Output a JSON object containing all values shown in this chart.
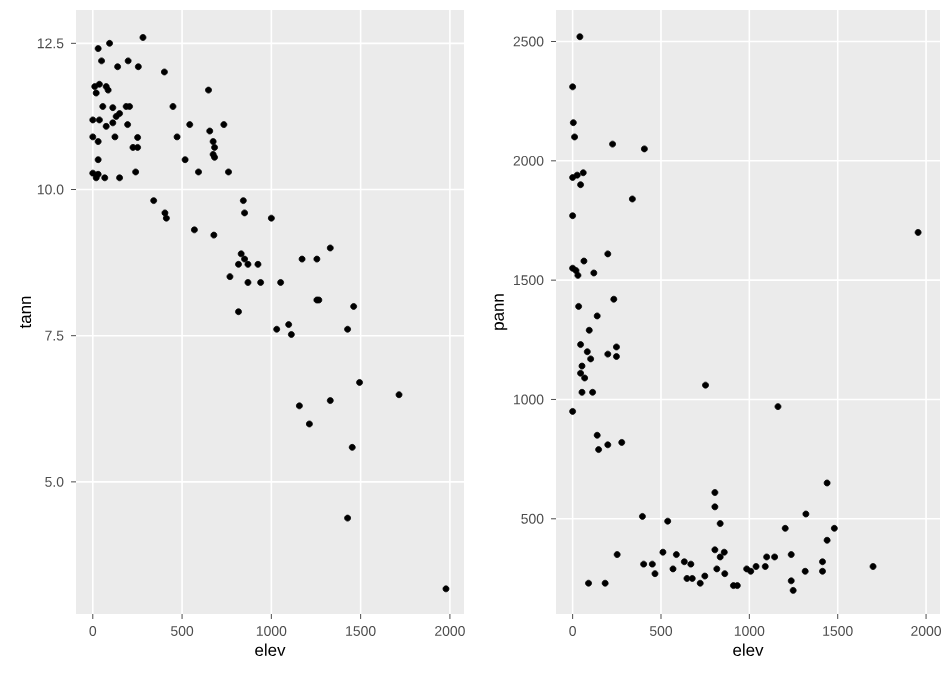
{
  "chart_data": [
    {
      "type": "scatter",
      "xlabel": "elev",
      "ylabel": "tann",
      "color": "#000000",
      "marker": "circle",
      "grid": true,
      "xlim": [
        -94,
        2079
      ],
      "ylim": [
        2.74,
        13.07
      ],
      "xticks": [
        0,
        500,
        1000,
        1500,
        2000
      ],
      "yticks": [
        {
          "value": 5,
          "label": "5.0"
        },
        7.5,
        {
          "value": 10,
          "label": "10.0"
        },
        12.5
      ],
      "x": [
        30,
        94,
        49,
        281,
        139,
        198,
        255,
        401,
        648,
        11,
        37,
        75,
        19,
        86,
        56,
        112,
        187,
        206,
        0,
        37,
        75,
        112,
        150,
        131,
        195,
        0,
        30,
        124,
        251,
        225,
        251,
        449,
        543,
        472,
        655,
        734,
        674,
        682,
        674,
        682,
        517,
        30,
        0,
        30,
        67,
        19,
        150,
        240,
        592,
        760,
        341,
        404,
        412,
        569,
        678,
        843,
        850,
        1000,
        831,
        816,
        869,
        925,
        850,
        1172,
        1255,
        1330,
        768,
        869,
        940,
        1052,
        1255,
        1266,
        1461,
        816,
        1030,
        1097,
        1112,
        1427,
        1157,
        1213,
        1330,
        1494,
        1715,
        1453,
        1427,
        1978
      ],
      "values": [
        12.41,
        12.5,
        12.2,
        12.6,
        12.1,
        12.2,
        12.1,
        12.01,
        11.7,
        11.76,
        11.8,
        11.76,
        11.65,
        11.7,
        11.42,
        11.4,
        11.42,
        11.42,
        11.19,
        11.19,
        11.08,
        11.14,
        11.3,
        11.25,
        11.11,
        10.9,
        10.82,
        10.9,
        10.89,
        10.72,
        10.72,
        11.42,
        11.11,
        10.9,
        11.0,
        11.11,
        10.82,
        10.72,
        10.6,
        10.55,
        10.51,
        10.51,
        10.28,
        10.26,
        10.2,
        10.2,
        10.2,
        10.3,
        10.3,
        10.3,
        9.81,
        9.6,
        9.51,
        9.31,
        9.22,
        9.81,
        9.6,
        9.51,
        8.9,
        8.72,
        8.72,
        8.72,
        8.81,
        8.81,
        8.81,
        9.0,
        8.51,
        8.41,
        8.41,
        8.41,
        8.11,
        8.11,
        8.0,
        7.91,
        7.61,
        7.69,
        7.52,
        7.61,
        6.3,
        5.99,
        6.39,
        6.7,
        6.49,
        5.59,
        4.38,
        3.17
      ]
    },
    {
      "type": "scatter",
      "xlabel": "elev",
      "ylabel": "pann",
      "color": "#000000",
      "marker": "circle",
      "grid": true,
      "xlim": [
        -94,
        2079
      ],
      "ylim": [
        101,
        2632
      ],
      "xticks": [
        0,
        500,
        1000,
        1500,
        2000
      ],
      "yticks": [
        500,
        1000,
        1500,
        2000,
        2500
      ],
      "x": [
        41,
        0,
        4,
        11,
        226,
        406,
        0,
        26,
        60,
        45,
        338,
        0,
        1955,
        199,
        64,
        0,
        19,
        30,
        120,
        233,
        34,
        139,
        94,
        45,
        83,
        199,
        248,
        248,
        102,
        53,
        45,
        68,
        53,
        113,
        752,
        1162,
        0,
        139,
        147,
        199,
        278,
        395,
        538,
        805,
        805,
        835,
        1440,
        1320,
        1203,
        1481,
        1440,
        252,
        511,
        587,
        805,
        858,
        835,
        402,
        451,
        466,
        568,
        632,
        669,
        647,
        677,
        748,
        722,
        816,
        861,
        985,
        1008,
        1038,
        1098,
        1143,
        1090,
        1237,
        1237,
        1248,
        1316,
        1414,
        1414,
        1700,
        910,
        932,
        90,
        184
      ],
      "values": [
        2520,
        2310,
        2160,
        2100,
        2070,
        2050,
        1930,
        1940,
        1950,
        1900,
        1840,
        1770,
        1700,
        1610,
        1580,
        1550,
        1540,
        1520,
        1530,
        1420,
        1390,
        1350,
        1290,
        1230,
        1200,
        1190,
        1220,
        1180,
        1170,
        1140,
        1110,
        1090,
        1030,
        1030,
        1060,
        970,
        950,
        850,
        790,
        810,
        820,
        510,
        490,
        610,
        550,
        480,
        650,
        520,
        460,
        460,
        410,
        350,
        360,
        350,
        370,
        360,
        340,
        310,
        310,
        270,
        290,
        320,
        310,
        250,
        250,
        260,
        230,
        290,
        270,
        290,
        280,
        300,
        340,
        340,
        300,
        350,
        240,
        200,
        280,
        320,
        280,
        300,
        220,
        220,
        230,
        230
      ]
    }
  ]
}
